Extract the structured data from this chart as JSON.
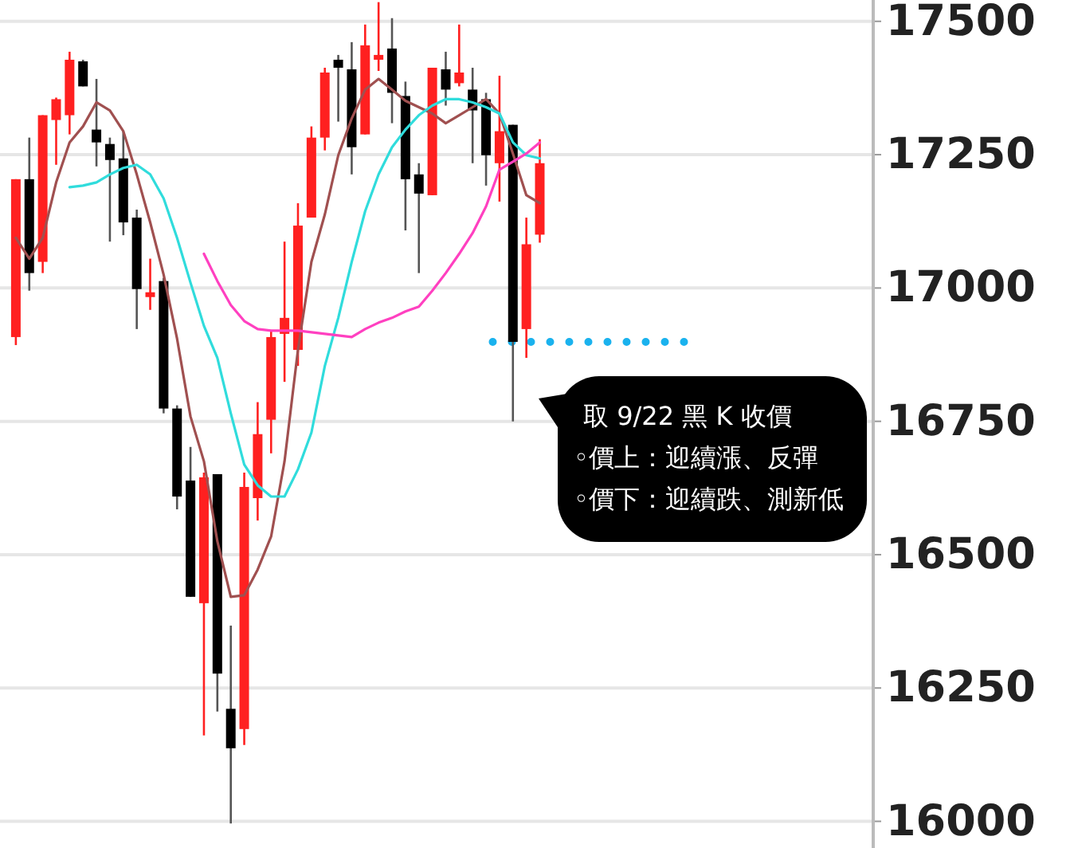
{
  "chart_data": {
    "type": "candlestick",
    "categories": [
      null,
      null,
      null,
      null,
      null,
      null,
      null,
      null,
      null,
      null,
      null,
      null,
      null,
      null,
      null,
      null,
      null,
      null,
      null,
      null,
      null,
      null,
      null,
      null,
      null,
      null,
      null,
      null,
      null,
      null,
      null,
      null,
      null,
      null,
      null,
      null,
      null,
      null,
      null,
      null
    ],
    "ohlc": [
      [
        16908,
        17204,
        16893,
        17204
      ],
      [
        17204,
        17282,
        16995,
        17028
      ],
      [
        17049,
        17324,
        17028,
        17324
      ],
      [
        17315,
        17357,
        17231,
        17354
      ],
      [
        17324,
        17443,
        17288,
        17428
      ],
      [
        17425,
        17428,
        17378,
        17378
      ],
      [
        17297,
        17392,
        17228,
        17273
      ],
      [
        17270,
        17282,
        17087,
        17240
      ],
      [
        17243,
        17294,
        17099,
        17123
      ],
      [
        17132,
        17147,
        16923,
        16998
      ],
      [
        16983,
        17055,
        16959,
        16992
      ],
      [
        17013,
        17019,
        16765,
        16774
      ],
      [
        16774,
        16780,
        16585,
        16609
      ],
      [
        16639,
        16702,
        16421,
        16421
      ],
      [
        16409,
        16654,
        16161,
        16645
      ],
      [
        16651,
        16651,
        16206,
        16277
      ],
      [
        16211,
        16367,
        15996,
        16137
      ],
      [
        16173,
        16654,
        16143,
        16627
      ],
      [
        16606,
        16786,
        16564,
        16726
      ],
      [
        16753,
        16920,
        16690,
        16908
      ],
      [
        16914,
        17087,
        16824,
        16944
      ],
      [
        16884,
        17159,
        16854,
        17117
      ],
      [
        17132,
        17303,
        17132,
        17282
      ],
      [
        17282,
        17413,
        17258,
        17404
      ],
      [
        17428,
        17437,
        17312,
        17413
      ],
      [
        17410,
        17461,
        17213,
        17264
      ],
      [
        17288,
        17494,
        17288,
        17455
      ],
      [
        17428,
        17536,
        17407,
        17437
      ],
      [
        17449,
        17506,
        17309,
        17366
      ],
      [
        17360,
        17387,
        17108,
        17204
      ],
      [
        17213,
        17234,
        17028,
        17177
      ],
      [
        17174,
        17413,
        17174,
        17413
      ],
      [
        17410,
        17443,
        17342,
        17372
      ],
      [
        17384,
        17494,
        17378,
        17404
      ],
      [
        17372,
        17413,
        17234,
        17333
      ],
      [
        17354,
        17366,
        17192,
        17249
      ],
      [
        17234,
        17398,
        17162,
        17294
      ],
      [
        17306,
        17306,
        16750,
        16899
      ],
      [
        16923,
        17132,
        16869,
        17082
      ],
      [
        17100,
        17279,
        17085,
        17234
      ]
    ],
    "colors": [
      "#ff2020",
      "#000000",
      "#ff2020",
      "#ff2020",
      "#ff2020",
      "#000000",
      "#000000",
      "#000000",
      "#000000",
      "#000000",
      "#ff2020",
      "#000000",
      "#000000",
      "#000000",
      "#ff2020",
      "#000000",
      "#000000",
      "#ff2020",
      "#ff2020",
      "#ff2020",
      "#ff2020",
      "#ff2020",
      "#ff2020",
      "#ff2020",
      "#000000",
      "#000000",
      "#ff2020",
      "#ff2020",
      "#000000",
      "#000000",
      "#000000",
      "#ff2020",
      "#000000",
      "#ff2020",
      "#000000",
      "#000000",
      "#ff2020",
      "#000000",
      "#ff2020",
      "#ff2020"
    ],
    "series": [
      {
        "type": "line",
        "color": "#a05050",
        "values": [
          17094,
          17055,
          17094,
          17198,
          17273,
          17303,
          17348,
          17333,
          17294,
          17213,
          17123,
          17025,
          16905,
          16759,
          16675,
          16525,
          16421,
          16424,
          16472,
          16534,
          16675,
          16884,
          17049,
          17138,
          17249,
          17318,
          17372,
          17392,
          17372,
          17351,
          17339,
          17327,
          17309,
          17324,
          17339,
          17354,
          17327,
          17252,
          17174,
          17159
        ]
      },
      {
        "type": "line",
        "color": "#30dcdc",
        "values": [
          null,
          null,
          null,
          null,
          17189,
          17192,
          17198,
          17213,
          17225,
          17231,
          17213,
          17168,
          17094,
          17010,
          16929,
          16869,
          16765,
          16669,
          16630,
          16609,
          16609,
          16660,
          16729,
          16854,
          16944,
          17049,
          17144,
          17213,
          17264,
          17297,
          17324,
          17342,
          17354,
          17354,
          17348,
          17339,
          17327,
          17273,
          17249,
          17243
        ]
      },
      {
        "type": "line",
        "color": "#ff40c0",
        "values": [
          null,
          null,
          null,
          null,
          null,
          null,
          null,
          null,
          null,
          null,
          null,
          null,
          null,
          null,
          17064,
          17013,
          16968,
          16938,
          16923,
          16920,
          16920,
          16920,
          16917,
          16914,
          16911,
          16908,
          16923,
          16935,
          16944,
          16956,
          16965,
          16995,
          17028,
          17064,
          17103,
          17153,
          17222,
          17237,
          17252,
          17273
        ]
      }
    ],
    "ylim": [
      15950,
      17540
    ],
    "yticks": [
      16000,
      16250,
      16500,
      16750,
      17000,
      17250,
      17500
    ],
    "grid": "y",
    "ref_lines": [
      {
        "axis": "y",
        "value": 16899,
        "color": "#1ab2ee",
        "line_style": "dotted"
      }
    ],
    "annotations": [
      "取 9/22 黑 K 收價\n◦價上：迎續漲、反彈\n◦價下：迎續跌、測新低"
    ]
  }
}
